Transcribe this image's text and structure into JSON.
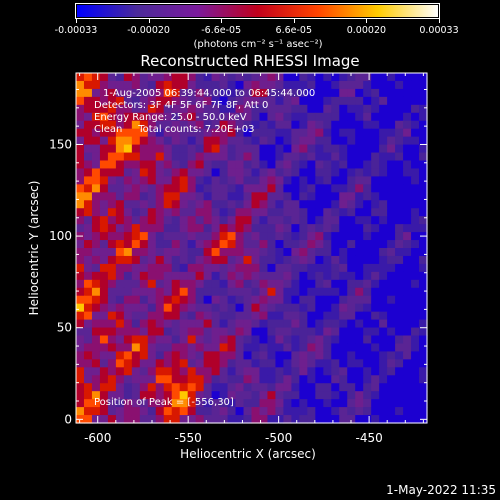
{
  "colorbar": {
    "tick_labels": [
      "-0.00033",
      "-0.00020",
      "-6.6e-05",
      "6.6e-05",
      "0.00020",
      "0.00033"
    ],
    "unit_label": "(photons cm⁻² s⁻¹ asec⁻²)",
    "range": [
      -0.00033,
      0.00033
    ],
    "colors": [
      "#0000ff",
      "#4b2a9a",
      "#7a1a9c",
      "#c0001c",
      "#ff4400",
      "#ffcc00",
      "#ffffff"
    ]
  },
  "chart_data": {
    "type": "heatmap",
    "title": "Reconstructed RHESSI Image",
    "xlabel": "Heliocentric X (arcsec)",
    "ylabel": "Heliocentric Y (arcsec)",
    "xlim": [
      -612,
      -418
    ],
    "ylim": [
      -2,
      189
    ],
    "x_ticks": [
      -600,
      -550,
      -500,
      -450
    ],
    "y_ticks": [
      0,
      50,
      100,
      150
    ],
    "x_tick_labels": [
      "-600",
      "-550",
      "-500",
      "-450"
    ],
    "y_tick_labels": [
      "0",
      "50",
      "100",
      "150"
    ],
    "annotations": {
      "time_range": "1-Aug-2005 06:39:44.000 to 06:45:44.000",
      "detectors": "Detectors: 3F 4F 5F 6F 7F 8F, Att 0",
      "energy_range": "Energy Range: 25.0 - 50.0 keV",
      "method": "Clean     Total counts: 7.20E+03",
      "peak": "Position of Peak = [-556,30]"
    },
    "peak_position": [
      -556,
      30
    ],
    "grid": false
  },
  "footer": {
    "date": "1-May-2022 11:35"
  }
}
